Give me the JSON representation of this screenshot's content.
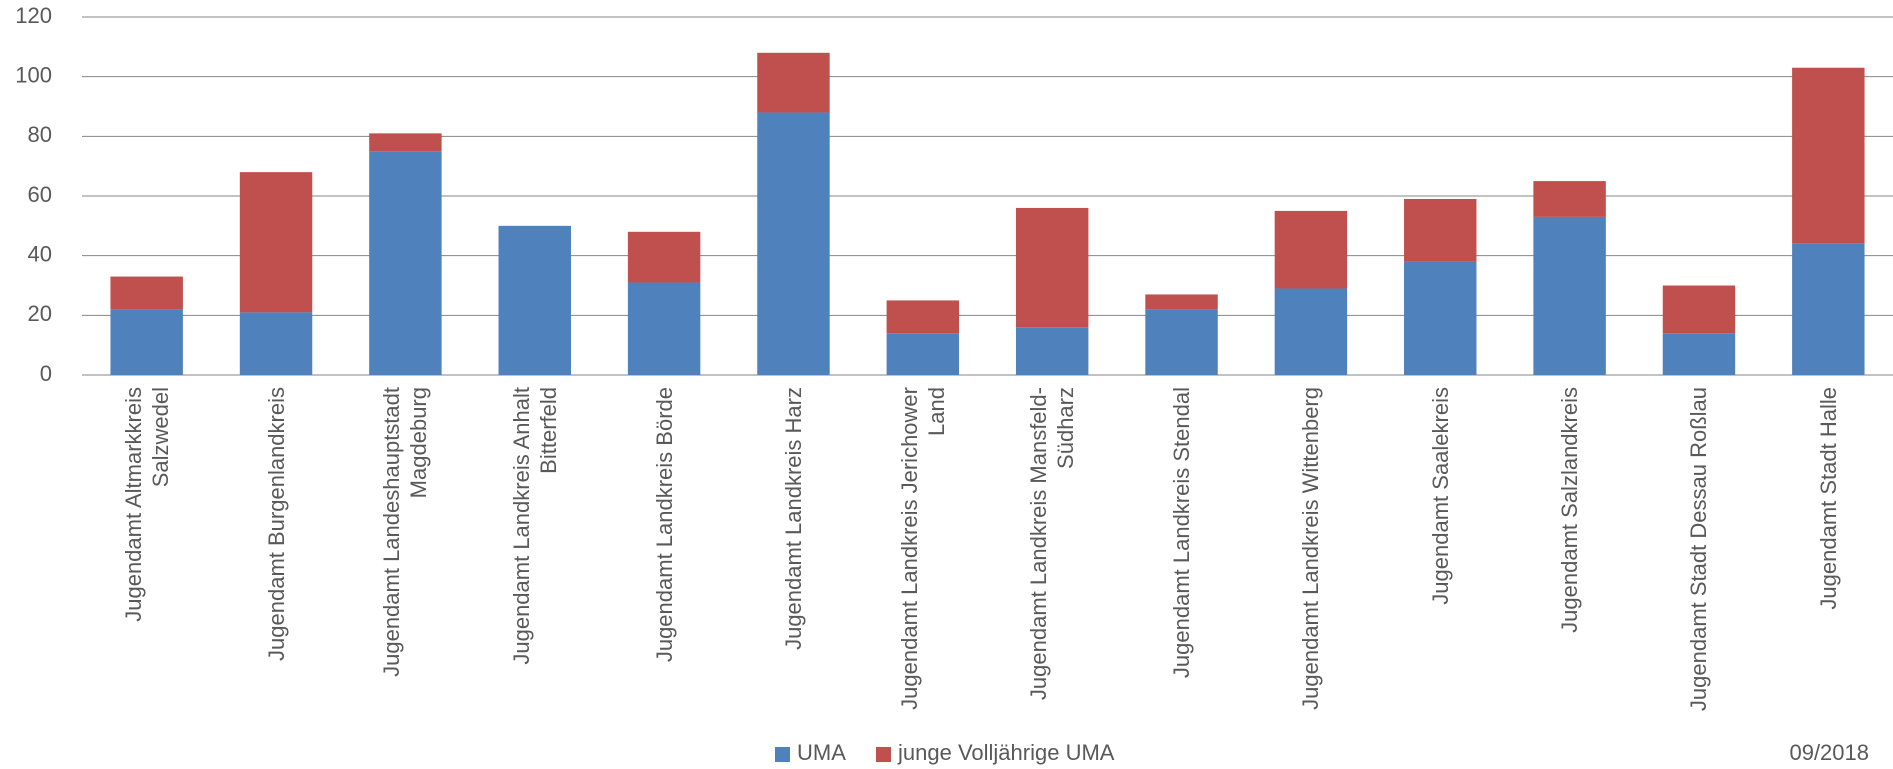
{
  "chart_data": {
    "type": "stacked_bar",
    "categories": [
      "Jugendamt Altmarkkreis Salzwedel",
      "Jugendamt Burgenlandkreis",
      "Jugendamt Landeshauptstadt Magdeburg",
      "Jugendamt Landkreis Anhalt Bitterfeld",
      "Jugendamt Landkreis Börde",
      "Jugendamt Landkreis Harz",
      "Jugendamt Landkreis Jerichower Land",
      "Jugendamt Landkreis Mansfeld-Südharz",
      "Jugendamt Landkreis Stendal",
      "Jugendamt Landkreis Wittenberg",
      "Jugendamt Saalekreis",
      "Jugendamt Salzlandkreis",
      "Jugendamt Stadt Dessau Roßlau",
      "Jugendamt Stadt Halle"
    ],
    "series": [
      {
        "name": "UMA",
        "color": "#4f81bd",
        "values": [
          22,
          21,
          75,
          50,
          31,
          88,
          14,
          16,
          22,
          29,
          38,
          53,
          14,
          44
        ]
      },
      {
        "name": "junge Volljährige UMA",
        "color": "#c0504d",
        "values": [
          11,
          47,
          6,
          0,
          17,
          20,
          11,
          40,
          5,
          26,
          21,
          12,
          16,
          59
        ]
      }
    ],
    "ylim": [
      0,
      120
    ],
    "yticks": [
      0,
      20,
      40,
      60,
      80,
      100,
      120
    ],
    "grid": true,
    "legend": "bottom",
    "note": "09/2018"
  }
}
